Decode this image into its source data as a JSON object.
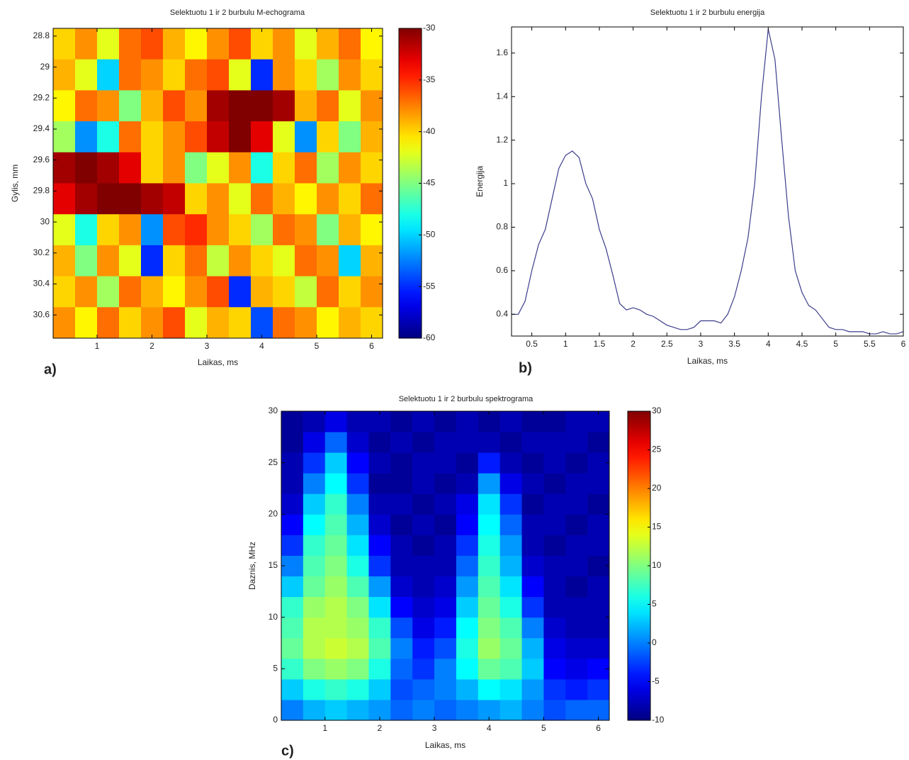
{
  "chart_data": [
    {
      "type": "heatmap",
      "title": "Selektuotu 1 ir 2 burbulu M-echograma",
      "panel_label": "a)",
      "x_label": "Laikas, ms",
      "y_label": "Gylis, mm",
      "x": [
        0.4,
        0.8,
        1.2,
        1.6,
        2.0,
        2.4,
        2.8,
        3.2,
        3.6,
        4.0,
        4.4,
        4.8,
        5.2,
        5.6,
        6.0
      ],
      "y": [
        28.85,
        29.05,
        29.25,
        29.45,
        29.65,
        29.85,
        30.05,
        30.25,
        30.45,
        30.65
      ],
      "z": [
        [
          -40,
          -38,
          -42,
          -37,
          -36,
          -39,
          -41,
          -38,
          -36,
          -40,
          -38,
          -42,
          -39,
          -37,
          -41
        ],
        [
          -39,
          -42,
          -50,
          -37,
          -38,
          -40,
          -37,
          -36,
          -42,
          -55,
          -38,
          -40,
          -44,
          -38,
          -40
        ],
        [
          -41,
          -37,
          -38,
          -45,
          -39,
          -36,
          -38,
          -31,
          -30,
          -30,
          -31,
          -39,
          -37,
          -42,
          -38
        ],
        [
          -44,
          -52,
          -48,
          -37,
          -40,
          -38,
          -36,
          -32,
          -30,
          -33,
          -42,
          -52,
          -40,
          -45,
          -39
        ],
        [
          -31,
          -30,
          -31,
          -33,
          -40,
          -38,
          -45,
          -42,
          -38,
          -48,
          -40,
          -37,
          -44,
          -38,
          -40
        ],
        [
          -33,
          -31,
          -30,
          -30,
          -31,
          -32,
          -40,
          -38,
          -42,
          -37,
          -39,
          -41,
          -38,
          -40,
          -37
        ],
        [
          -42,
          -48,
          -40,
          -38,
          -52,
          -36,
          -35,
          -38,
          -40,
          -44,
          -37,
          -38,
          -45,
          -39,
          -41
        ],
        [
          -39,
          -45,
          -38,
          -42,
          -55,
          -40,
          -37,
          -43,
          -38,
          -40,
          -42,
          -37,
          -38,
          -50,
          -39
        ],
        [
          -40,
          -38,
          -44,
          -37,
          -39,
          -41,
          -38,
          -36,
          -55,
          -39,
          -40,
          -43,
          -37,
          -40,
          -38
        ],
        [
          -38,
          -41,
          -37,
          -40,
          -38,
          -36,
          -42,
          -39,
          -40,
          -54,
          -37,
          -38,
          -41,
          -39,
          -40
        ]
      ],
      "xlim": [
        0.2,
        6.2
      ],
      "xticks": [
        1,
        2,
        3,
        4,
        5,
        6
      ],
      "ylim": [
        28.75,
        30.75
      ],
      "yreverse": true,
      "yticks": [
        28.8,
        29,
        29.2,
        29.4,
        29.6,
        29.8,
        30,
        30.2,
        30.4,
        30.6
      ],
      "clim": [
        -60,
        -30
      ],
      "cticks": [
        -30,
        -35,
        -40,
        -45,
        -50,
        -55,
        -60
      ],
      "colormap": "jet"
    },
    {
      "type": "line",
      "title": "Selektuotu 1 ir 2 burbulu  energija",
      "panel_label": "b)",
      "x_label": "Laikas, ms",
      "y_label": "Energija",
      "color": "#3c3c8c",
      "x": [
        0.2,
        0.3,
        0.4,
        0.5,
        0.6,
        0.7,
        0.8,
        0.9,
        1.0,
        1.1,
        1.2,
        1.3,
        1.4,
        1.5,
        1.6,
        1.7,
        1.8,
        1.9,
        2.0,
        2.1,
        2.2,
        2.3,
        2.4,
        2.5,
        2.6,
        2.7,
        2.8,
        2.9,
        3.0,
        3.1,
        3.2,
        3.3,
        3.4,
        3.5,
        3.6,
        3.7,
        3.8,
        3.9,
        4.0,
        4.1,
        4.2,
        4.3,
        4.4,
        4.5,
        4.6,
        4.7,
        4.8,
        4.9,
        5.0,
        5.1,
        5.2,
        5.3,
        5.4,
        5.5,
        5.6,
        5.7,
        5.8,
        5.9,
        6.0
      ],
      "values": [
        0.4,
        0.4,
        0.46,
        0.6,
        0.72,
        0.79,
        0.93,
        1.07,
        1.13,
        1.15,
        1.12,
        1.0,
        0.93,
        0.79,
        0.7,
        0.58,
        0.45,
        0.42,
        0.43,
        0.42,
        0.4,
        0.39,
        0.37,
        0.35,
        0.34,
        0.33,
        0.33,
        0.34,
        0.37,
        0.37,
        0.37,
        0.36,
        0.4,
        0.48,
        0.6,
        0.75,
        1.0,
        1.4,
        1.71,
        1.57,
        1.2,
        0.85,
        0.6,
        0.5,
        0.44,
        0.42,
        0.38,
        0.34,
        0.33,
        0.33,
        0.32,
        0.32,
        0.32,
        0.31,
        0.31,
        0.32,
        0.31,
        0.31,
        0.32
      ],
      "xlim": [
        0.2,
        6
      ],
      "xticks": [
        0.5,
        1,
        1.5,
        2,
        2.5,
        3,
        3.5,
        4,
        4.5,
        5,
        5.5,
        6
      ],
      "ylim": [
        0.3,
        1.72
      ],
      "yticks": [
        0.4,
        0.6,
        0.8,
        1,
        1.2,
        1.4,
        1.6
      ]
    },
    {
      "type": "heatmap",
      "title": "Selektuotu 1 ir 2 burbulu spektrograma",
      "panel_label": "c)",
      "x_label": "Laikas, ms",
      "y_label": "Daznis, MHz",
      "x": [
        0.4,
        0.8,
        1.2,
        1.6,
        2.0,
        2.4,
        2.8,
        3.2,
        3.6,
        4.0,
        4.4,
        4.8,
        5.2,
        5.6,
        6.0
      ],
      "y": [
        1,
        3,
        5,
        7,
        9,
        11,
        13,
        15,
        17,
        19,
        21,
        23,
        25,
        27,
        29
      ],
      "z": [
        [
          0,
          2,
          3,
          2,
          1,
          -1,
          0,
          -1,
          0,
          1,
          2,
          0,
          -2,
          -1,
          -1
        ],
        [
          3,
          6,
          7,
          6,
          3,
          -2,
          -1,
          0,
          2,
          5,
          4,
          1,
          -3,
          -4,
          -3
        ],
        [
          7,
          10,
          11,
          10,
          6,
          -1,
          -3,
          0,
          5,
          9,
          8,
          3,
          -5,
          -6,
          -5
        ],
        [
          9,
          12,
          13,
          12,
          8,
          0,
          -4,
          -2,
          6,
          11,
          9,
          2,
          -6,
          -7,
          -7
        ],
        [
          8,
          12,
          12,
          11,
          7,
          -2,
          -6,
          -4,
          5,
          10,
          8,
          0,
          -7,
          -8,
          -8
        ],
        [
          7,
          11,
          12,
          10,
          4,
          -5,
          -7,
          -6,
          3,
          9,
          6,
          -3,
          -8,
          -8,
          -8
        ],
        [
          3,
          9,
          11,
          8,
          1,
          -7,
          -8,
          -7,
          1,
          8,
          4,
          -5,
          -8,
          -9,
          -8
        ],
        [
          0,
          8,
          10,
          6,
          -3,
          -8,
          -8,
          -8,
          -1,
          7,
          2,
          -7,
          -8,
          -8,
          -9
        ],
        [
          -3,
          7,
          9,
          4,
          -5,
          -8,
          -9,
          -8,
          -3,
          6,
          1,
          -8,
          -9,
          -8,
          -8
        ],
        [
          -5,
          5,
          8,
          2,
          -7,
          -9,
          -8,
          -9,
          -5,
          5,
          -1,
          -8,
          -8,
          -9,
          -8
        ],
        [
          -7,
          3,
          7,
          0,
          -8,
          -8,
          -9,
          -8,
          -6,
          4,
          -3,
          -9,
          -8,
          -8,
          -9
        ],
        [
          -8,
          0,
          5,
          -3,
          -9,
          -9,
          -8,
          -9,
          -8,
          1,
          -6,
          -8,
          -9,
          -8,
          -8
        ],
        [
          -8,
          -3,
          3,
          -5,
          -8,
          -9,
          -8,
          -8,
          -9,
          -4,
          -8,
          -9,
          -8,
          -9,
          -8
        ],
        [
          -9,
          -6,
          -1,
          -7,
          -9,
          -8,
          -9,
          -8,
          -8,
          -8,
          -9,
          -8,
          -8,
          -8,
          -9
        ],
        [
          -9,
          -8,
          -6,
          -8,
          -8,
          -9,
          -8,
          -9,
          -8,
          -9,
          -8,
          -9,
          -9,
          -8,
          -8
        ]
      ],
      "xlim": [
        0.2,
        6.2
      ],
      "xticks": [
        1,
        2,
        3,
        4,
        5,
        6
      ],
      "ylim": [
        0,
        30
      ],
      "yticks": [
        0,
        5,
        10,
        15,
        20,
        25,
        30
      ],
      "clim": [
        -10,
        30
      ],
      "cticks": [
        30,
        25,
        20,
        15,
        10,
        5,
        0,
        -5,
        -10
      ],
      "colormap": "jet"
    }
  ]
}
